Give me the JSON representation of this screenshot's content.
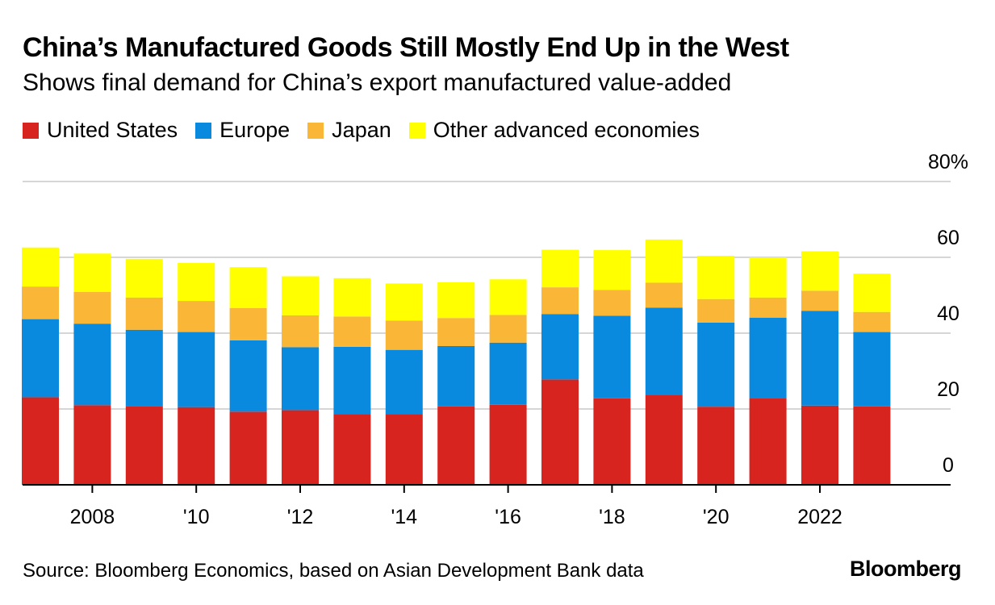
{
  "title": "China’s Manufactured Goods Still Mostly End Up in the West",
  "subtitle": "Shows final demand for China’s export manufactured value-added",
  "source": "Source: Bloomberg Economics, based on Asian Development Bank data",
  "brand": "Bloomberg",
  "legend": [
    {
      "label": "United States",
      "color": "#d7241f"
    },
    {
      "label": "Europe",
      "color": "#0a8ade"
    },
    {
      "label": "Japan",
      "color": "#fab737"
    },
    {
      "label": "Other advanced economies",
      "color": "#ffff00"
    }
  ],
  "chart_data": {
    "type": "bar",
    "stacked": true,
    "title": "China’s Manufactured Goods Still Mostly End Up in the West",
    "subtitle": "Shows final demand for China’s export manufactured value-added",
    "categories": [
      "2007",
      "2008",
      "2009",
      "2010",
      "2011",
      "2012",
      "2013",
      "2014",
      "2015",
      "2016",
      "2017",
      "2018",
      "2019",
      "2020",
      "2021",
      "2022",
      "2023"
    ],
    "x_tick_labels": [
      {
        "category": "2008",
        "label": "2008"
      },
      {
        "category": "2010",
        "label": "'10"
      },
      {
        "category": "2012",
        "label": "'12"
      },
      {
        "category": "2014",
        "label": "'14"
      },
      {
        "category": "2016",
        "label": "'16"
      },
      {
        "category": "2018",
        "label": "'18"
      },
      {
        "category": "2020",
        "label": "'20"
      },
      {
        "category": "2022",
        "label": "2022"
      }
    ],
    "y_ticks": [
      {
        "value": 0,
        "label": "0"
      },
      {
        "value": 20,
        "label": "20"
      },
      {
        "value": 40,
        "label": "40"
      },
      {
        "value": 60,
        "label": "60"
      },
      {
        "value": 80,
        "label": "80%"
      }
    ],
    "ylim": [
      0,
      80
    ],
    "xlabel": "",
    "ylabel": "",
    "grid": true,
    "series": [
      {
        "name": "United States",
        "color": "#d7241f",
        "values": [
          23.1,
          21.0,
          20.8,
          20.5,
          19.3,
          19.7,
          18.7,
          18.7,
          20.7,
          21.1,
          27.8,
          22.8,
          23.8,
          20.6,
          22.9,
          20.9,
          20.7
        ]
      },
      {
        "name": "Europe",
        "color": "#0a8ade",
        "values": [
          20.6,
          21.5,
          20.1,
          19.8,
          18.8,
          16.6,
          17.7,
          16.9,
          15.9,
          16.4,
          17.2,
          21.8,
          22.9,
          22.2,
          21.2,
          25.0,
          19.6
        ]
      },
      {
        "name": "Japan",
        "color": "#fab737",
        "values": [
          8.6,
          8.4,
          8.5,
          8.2,
          8.5,
          8.4,
          8.0,
          7.7,
          7.4,
          7.3,
          7.1,
          6.8,
          6.6,
          6.2,
          5.3,
          5.3,
          5.3
        ]
      },
      {
        "name": "Other advanced economies",
        "color": "#ffff00",
        "values": [
          10.3,
          10.1,
          10.2,
          10.0,
          10.8,
          10.3,
          10.1,
          9.8,
          9.4,
          9.4,
          9.9,
          10.5,
          11.4,
          11.4,
          10.6,
          10.4,
          10.1
        ]
      }
    ]
  }
}
